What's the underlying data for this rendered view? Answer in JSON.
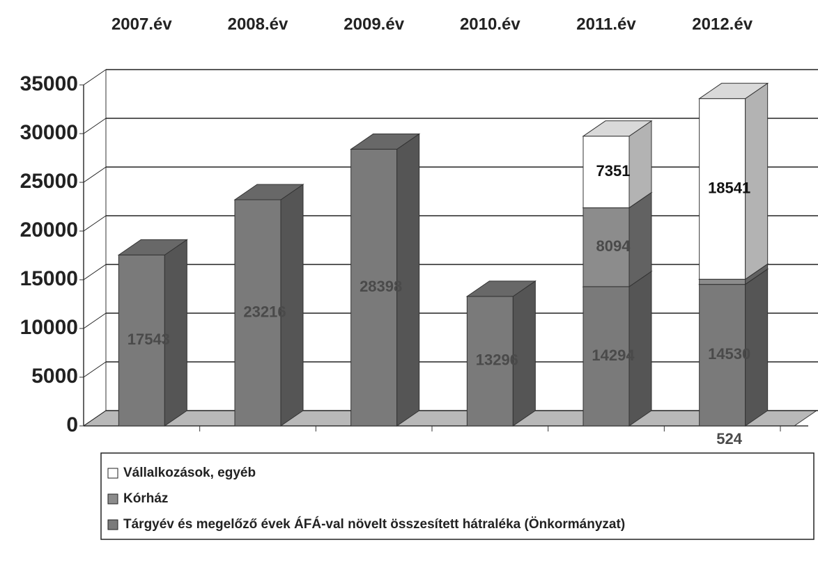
{
  "chart_data": {
    "type": "bar3d_stacked",
    "categories": [
      "2007.év",
      "2008.év",
      "2009.év",
      "2010.év",
      "2011.év",
      "2012.év"
    ],
    "series": [
      {
        "name": "Tárgyév és megelőző évek ÁFÁ-val növelt összesített hátraléka (Önkormányzat)",
        "color": "#7a7a7a",
        "values": [
          17543,
          23216,
          28398,
          13296,
          14294,
          14530
        ]
      },
      {
        "name": "Kórház",
        "color": "#8c8c8c",
        "values": [
          null,
          null,
          null,
          null,
          8094,
          524
        ]
      },
      {
        "name": "Vállalkozások, egyéb",
        "color": "#ffffff",
        "values": [
          null,
          null,
          null,
          null,
          7351,
          18541
        ]
      }
    ],
    "ylim": [
      0,
      35000
    ],
    "yticks": [
      0,
      5000,
      10000,
      15000,
      20000,
      25000,
      30000,
      35000
    ],
    "grid": true
  }
}
